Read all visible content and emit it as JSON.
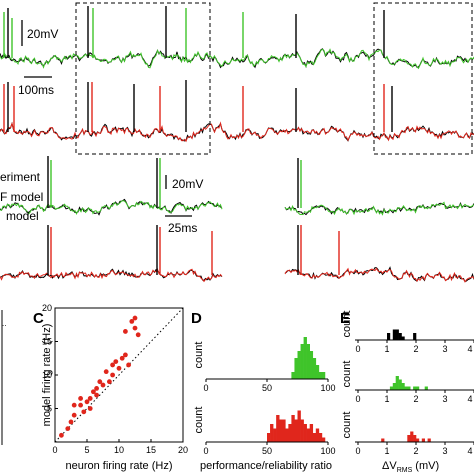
{
  "colors": {
    "experiment": "#000000",
    "green_model": "#3fc42a",
    "red_model": "#e0261c",
    "scatter": "#e0261c"
  },
  "panel_a": {
    "scalebar_voltage": "20mV",
    "scalebar_time": "100ms"
  },
  "panel_b": {
    "legend": [
      "eriment",
      "F model",
      "model"
    ],
    "scalebar_voltage": "20mV",
    "scalebar_time": "25ms"
  },
  "chart_data": [
    {
      "panel": "C",
      "type": "scatter",
      "xlabel": "neuron firing rate (Hz)",
      "ylabel": "model firing rate (Hz)",
      "xlim": [
        0,
        20
      ],
      "ylim": [
        0,
        20
      ],
      "xticks": [
        "0",
        "5",
        "10",
        "15",
        "20"
      ],
      "yticks": [
        "0",
        "5",
        "10",
        "15",
        "20"
      ],
      "diagonal": true,
      "points": [
        [
          1.0,
          1.0
        ],
        [
          2.0,
          2.0
        ],
        [
          2.5,
          3.0
        ],
        [
          3.0,
          4.0
        ],
        [
          3.0,
          5.5
        ],
        [
          4.0,
          5.5
        ],
        [
          4.5,
          4.5
        ],
        [
          4.0,
          6.5
        ],
        [
          5.0,
          6.0
        ],
        [
          5.5,
          6.5
        ],
        [
          5.5,
          5.0
        ],
        [
          6.0,
          7.5
        ],
        [
          6.5,
          8.0
        ],
        [
          6.5,
          7.0
        ],
        [
          7.0,
          9.0
        ],
        [
          7.5,
          8.5
        ],
        [
          8.0,
          10.5
        ],
        [
          8.5,
          9.0
        ],
        [
          9.0,
          10.0
        ],
        [
          9.0,
          11.5
        ],
        [
          9.5,
          12.0
        ],
        [
          10.0,
          11.0
        ],
        [
          10.5,
          12.5
        ],
        [
          11.0,
          13.0
        ],
        [
          11.5,
          11.5
        ],
        [
          12.0,
          18.0
        ],
        [
          12.5,
          17.0
        ],
        [
          12.5,
          18.5
        ],
        [
          13.0,
          16.0
        ],
        [
          11.0,
          16.5
        ]
      ]
    },
    {
      "panel": "D",
      "type": "bar",
      "xlabel": "performance/reliability ratio",
      "ylabel": "count",
      "xlim": [
        0,
        100
      ],
      "xticks": [
        "0",
        "50",
        "100"
      ],
      "series": [
        {
          "color": "green",
          "bin_start": 70,
          "bin_width": 2.5,
          "values": [
            1,
            3,
            4,
            5,
            6,
            5,
            4,
            3,
            2,
            1,
            1
          ]
        },
        {
          "color": "red",
          "bin_start": 50,
          "bin_width": 2.5,
          "values": [
            2,
            4,
            3,
            6,
            5,
            5,
            3,
            4,
            6,
            5,
            7,
            5,
            4,
            3,
            4,
            2,
            3,
            2,
            1
          ]
        }
      ]
    },
    {
      "panel": "E",
      "type": "bar",
      "xlabel": "ΔV",
      "xlabel_sub": "RMS",
      "xlabel_unit": " (mV)",
      "ylabel": "count",
      "xlim": [
        0,
        4
      ],
      "xticks": [
        "0",
        "1",
        "2",
        "3",
        "4"
      ],
      "series": [
        {
          "color": "black",
          "bin_start": 1.0,
          "bin_width": 0.1,
          "values": [
            2,
            0,
            3,
            3,
            2,
            1,
            0,
            0,
            0,
            2
          ]
        },
        {
          "color": "green",
          "bin_start": 1.1,
          "bin_width": 0.1,
          "values": [
            1,
            2,
            4,
            3,
            2,
            1,
            1,
            0,
            1,
            1,
            0,
            0,
            1
          ]
        },
        {
          "color": "red",
          "bin_start": 0.8,
          "bin_width": 0.1,
          "values": [
            1,
            0,
            0,
            0,
            0,
            0,
            0,
            0,
            0,
            2,
            3,
            2,
            1,
            0,
            1,
            0,
            1,
            0,
            0,
            0,
            0,
            0,
            0,
            0,
            0,
            0,
            0,
            0,
            0,
            0,
            0,
            0,
            1
          ]
        }
      ]
    }
  ]
}
